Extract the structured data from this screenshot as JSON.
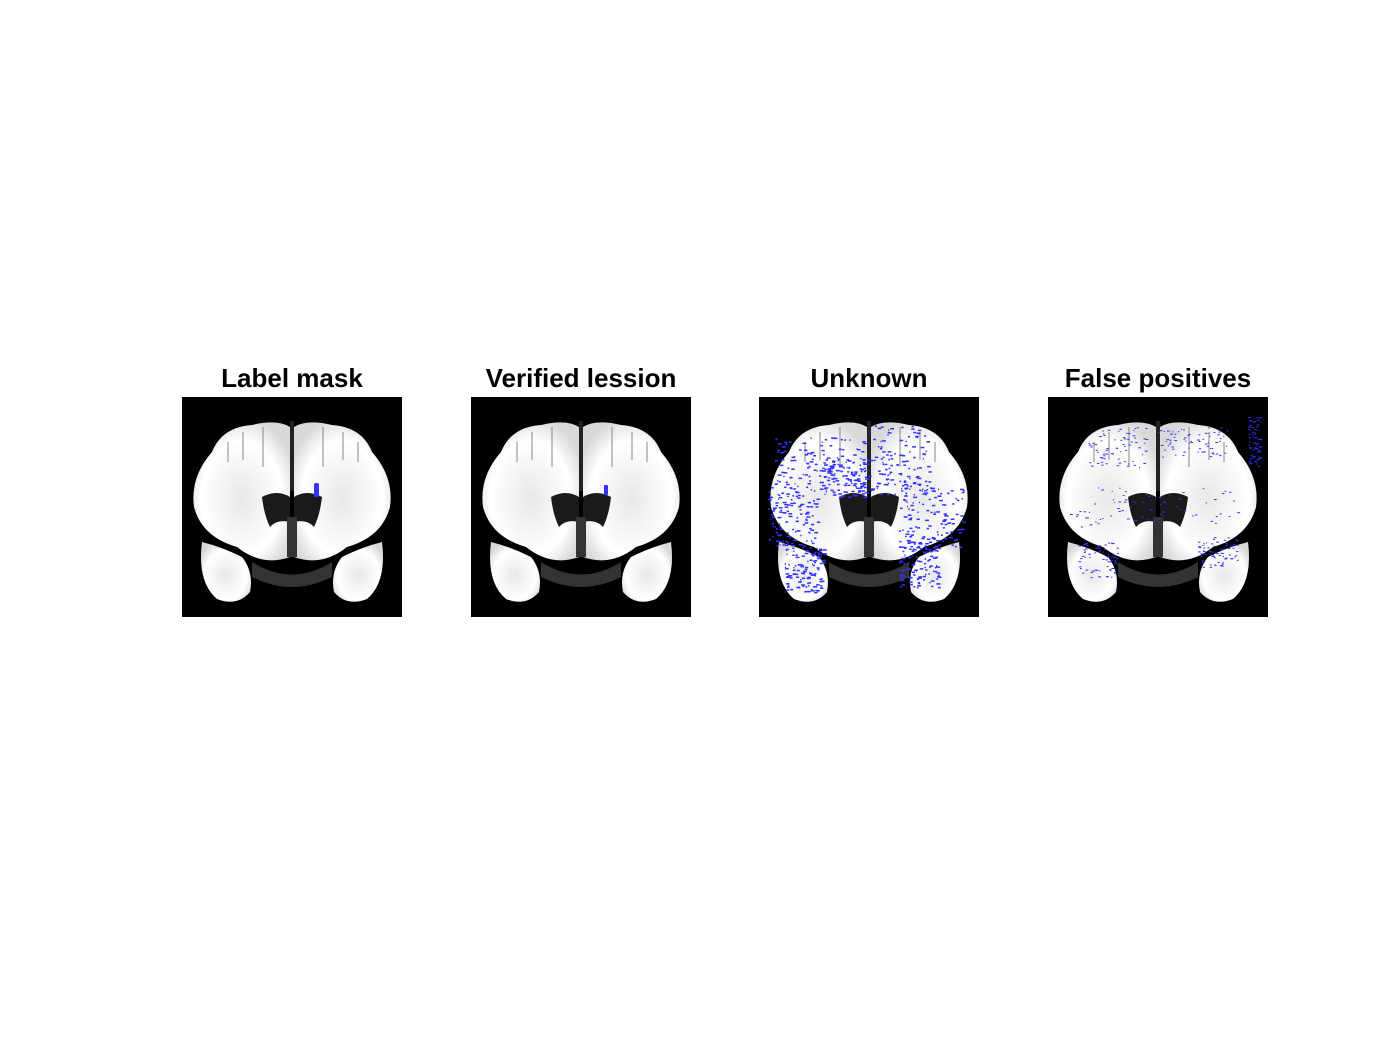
{
  "figure": {
    "panels": [
      {
        "title": "Label mask",
        "overlay": "label"
      },
      {
        "title": "Verified lession",
        "overlay": "verified"
      },
      {
        "title": "Unknown",
        "overlay": "unknown"
      },
      {
        "title": "False positives",
        "overlay": "fp"
      }
    ]
  },
  "colors": {
    "background": "#000000",
    "tissue": "#ffffff",
    "overlay": "#3333ff"
  }
}
